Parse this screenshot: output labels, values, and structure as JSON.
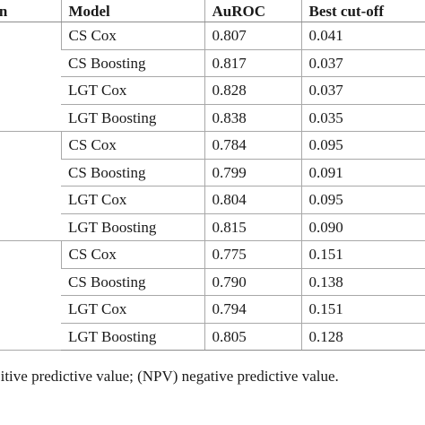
{
  "table": {
    "headers": [
      "tion",
      "Model",
      "AuROC",
      "Best cut-off"
    ],
    "groups": [
      {
        "rows": [
          {
            "model": "CS Cox",
            "auroc": "0.807",
            "cutoff": "0.041"
          },
          {
            "model": "CS Boosting",
            "auroc": "0.817",
            "cutoff": "0.037"
          },
          {
            "model": "LGT Cox",
            "auroc": "0.828",
            "cutoff": "0.037"
          },
          {
            "model": "LGT Boosting",
            "auroc": "0.838",
            "cutoff": "0.035"
          }
        ]
      },
      {
        "rows": [
          {
            "model": "CS Cox",
            "auroc": "0.784",
            "cutoff": "0.095"
          },
          {
            "model": "CS Boosting",
            "auroc": "0.799",
            "cutoff": "0.091"
          },
          {
            "model": "LGT Cox",
            "auroc": "0.804",
            "cutoff": "0.095"
          },
          {
            "model": "LGT Boosting",
            "auroc": "0.815",
            "cutoff": "0.090"
          }
        ]
      },
      {
        "rows": [
          {
            "model": "CS Cox",
            "auroc": "0.775",
            "cutoff": "0.151"
          },
          {
            "model": "CS Boosting",
            "auroc": "0.790",
            "cutoff": "0.138"
          },
          {
            "model": "LGT Cox",
            "auroc": "0.794",
            "cutoff": "0.151"
          },
          {
            "model": "LGT Boosting",
            "auroc": "0.805",
            "cutoff": "0.128"
          }
        ]
      }
    ]
  },
  "footnote": "sitive predictive value; (NPV) negative predictive value."
}
